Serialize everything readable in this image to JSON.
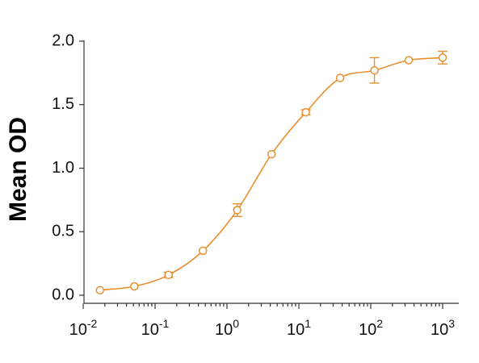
{
  "chart_data": {
    "type": "scatter",
    "title": "",
    "xlabel": "",
    "ylabel": "Mean OD",
    "x_scale": "log",
    "xlim": [
      0.01,
      1000
    ],
    "ylim": [
      0,
      2.0
    ],
    "grid": false,
    "x_ticks": [
      {
        "value": 0.01,
        "base": "10",
        "exp": "-2"
      },
      {
        "value": 0.1,
        "base": "10",
        "exp": "-1"
      },
      {
        "value": 1,
        "base": "10",
        "exp": "0"
      },
      {
        "value": 10,
        "base": "10",
        "exp": "1"
      },
      {
        "value": 100,
        "base": "10",
        "exp": "2"
      },
      {
        "value": 1000,
        "base": "10",
        "exp": "3"
      }
    ],
    "y_ticks": [
      {
        "value": 0.0,
        "label": "0.0"
      },
      {
        "value": 0.5,
        "label": "0.5"
      },
      {
        "value": 1.0,
        "label": "1.0"
      },
      {
        "value": 1.5,
        "label": "1.5"
      },
      {
        "value": 2.0,
        "label": "2.0"
      }
    ],
    "series": [
      {
        "color": "#E8902E",
        "marker": "open-circle",
        "fit": "sigmoidal curve",
        "points": [
          {
            "x": 0.0171,
            "y": 0.04,
            "err": 0.01
          },
          {
            "x": 0.0514,
            "y": 0.07,
            "err": 0.01
          },
          {
            "x": 0.154,
            "y": 0.16,
            "err": 0.02
          },
          {
            "x": 0.463,
            "y": 0.35,
            "err": 0.01
          },
          {
            "x": 1.39,
            "y": 0.67,
            "err": 0.05
          },
          {
            "x": 4.17,
            "y": 1.11,
            "err": 0.01
          },
          {
            "x": 12.5,
            "y": 1.44,
            "err": 0.02
          },
          {
            "x": 37.5,
            "y": 1.71,
            "err": 0.01
          },
          {
            "x": 112.5,
            "y": 1.77,
            "err": 0.1
          },
          {
            "x": 337.5,
            "y": 1.85,
            "err": 0.01
          },
          {
            "x": 1000,
            "y": 1.87,
            "err": 0.05
          }
        ]
      }
    ]
  }
}
